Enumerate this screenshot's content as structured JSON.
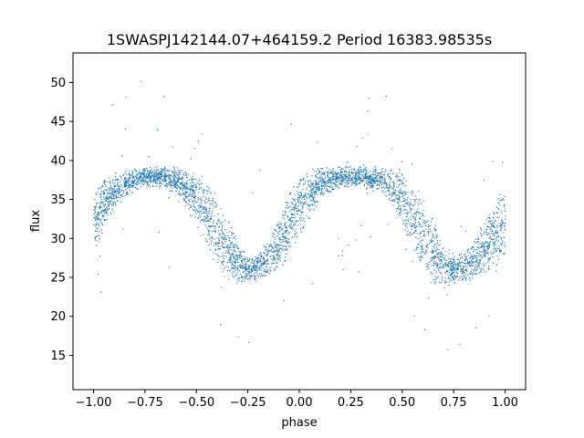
{
  "chart_data": {
    "type": "scatter",
    "title": "1SWASPJ142144.07+464159.2 Period 16383.98535s",
    "xlabel": "phase",
    "ylabel": "flux",
    "xlim": [
      -1.1,
      1.1
    ],
    "ylim": [
      10.6,
      53.8
    ],
    "xticks": [
      -1.0,
      -0.75,
      -0.5,
      -0.25,
      0.0,
      0.25,
      0.5,
      0.75,
      1.0
    ],
    "xtick_labels": [
      "−1.00",
      "−0.75",
      "−0.50",
      "−0.25",
      "0.00",
      "0.25",
      "0.50",
      "0.75",
      "1.00"
    ],
    "yticks": [
      15,
      20,
      25,
      30,
      35,
      40,
      45,
      50
    ],
    "ytick_labels": [
      "15",
      "20",
      "25",
      "30",
      "35",
      "40",
      "45",
      "50"
    ],
    "grid": false,
    "marker_color": "#1f77b4",
    "series": [
      {
        "x": [
          -1.0,
          -0.95,
          -0.9,
          -0.85,
          -0.8,
          -0.75,
          -0.7,
          -0.65,
          -0.6,
          -0.55,
          -0.5,
          -0.45,
          -0.4,
          -0.35,
          -0.3,
          -0.25,
          -0.2,
          -0.15,
          -0.1,
          -0.05,
          0.0,
          0.05,
          0.1,
          0.15,
          0.2,
          0.25,
          0.3,
          0.35,
          0.4,
          0.45,
          0.5,
          0.55,
          0.6,
          0.65,
          0.7,
          0.75,
          0.8,
          0.85,
          0.9,
          0.95,
          1.0
        ],
        "y": [
          32.0,
          34.5,
          36.0,
          37.0,
          37.6,
          37.9,
          38.0,
          37.9,
          37.4,
          36.5,
          35.0,
          33.0,
          30.8,
          28.5,
          26.8,
          26.2,
          26.4,
          27.5,
          29.5,
          32.0,
          34.2,
          35.8,
          37.0,
          37.6,
          37.9,
          38.0,
          38.0,
          37.8,
          37.4,
          36.5,
          35.0,
          33.0,
          30.5,
          28.2,
          26.6,
          26.2,
          26.4,
          27.3,
          29.0,
          30.8,
          32.0
        ],
        "band_halfwidth": [
          4.5,
          3.5,
          2.5,
          2.0,
          1.6,
          1.5,
          1.5,
          1.6,
          2.0,
          2.8,
          3.8,
          4.5,
          4.8,
          4.5,
          3.0,
          2.0,
          2.0,
          2.8,
          3.8,
          4.5,
          4.2,
          3.2,
          2.3,
          1.7,
          1.5,
          1.5,
          1.5,
          1.6,
          2.0,
          2.8,
          3.8,
          4.6,
          4.8,
          4.5,
          3.0,
          2.0,
          2.0,
          2.8,
          4.0,
          4.5,
          4.5
        ]
      }
    ]
  }
}
